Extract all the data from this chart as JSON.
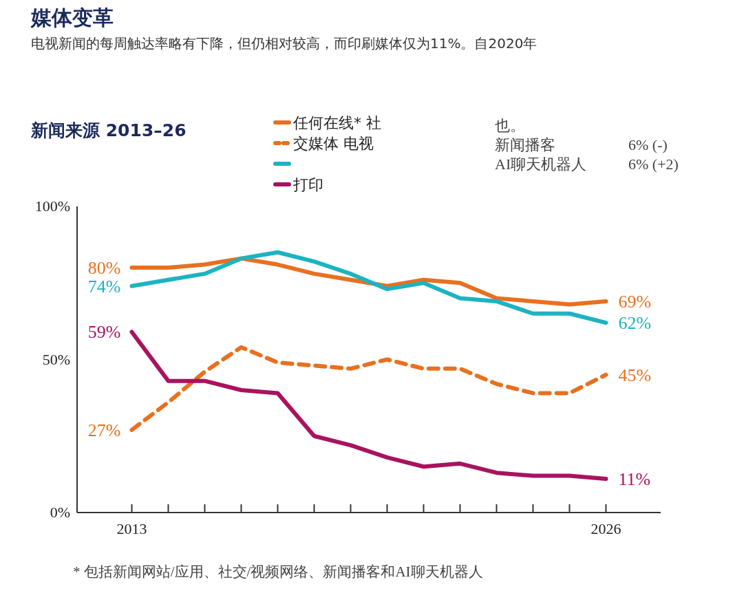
{
  "chart_data": {
    "type": "line",
    "title": "媒体变革",
    "subtitle": "电视新闻的每周触达率略有下降，但仍相对较高，而印刷媒体仅为11%。自2020年",
    "x": [
      2013,
      2014,
      2015,
      2016,
      2017,
      2018,
      2019,
      2020,
      2021,
      2022,
      2023,
      2024,
      2025,
      2026
    ],
    "xlim": [
      2011.5,
      2027.5
    ],
    "xticks": [
      {
        "value": 2013,
        "label": "2013"
      },
      {
        "value": 2014,
        "label": null
      },
      {
        "value": 2015,
        "label": null
      },
      {
        "value": 2016,
        "label": null
      },
      {
        "value": 2017,
        "label": null
      },
      {
        "value": 2018,
        "label": null
      },
      {
        "value": 2019,
        "label": null
      },
      {
        "value": 2020,
        "label": null
      },
      {
        "value": 2021,
        "label": null
      },
      {
        "value": 2022,
        "label": null
      },
      {
        "value": 2023,
        "label": null
      },
      {
        "value": 2024,
        "label": null
      },
      {
        "value": 2025,
        "label": null
      },
      {
        "value": 2026,
        "label": "2026"
      }
    ],
    "ylim": [
      0,
      100
    ],
    "yticks": [
      {
        "value": 0,
        "label": "0%"
      },
      {
        "value": 50,
        "label": "50%"
      },
      {
        "value": 100,
        "label": "100%"
      }
    ],
    "grid": false,
    "legend": "top",
    "marker": "none",
    "series": [
      {
        "name": "任何在线* 社",
        "color": "#e8701f",
        "line_style": "solid",
        "values": [
          80,
          80,
          81,
          83,
          81,
          78,
          76,
          74,
          76,
          75,
          70,
          69,
          68,
          69
        ],
        "value_labels": [
          "80%",
          null,
          null,
          null,
          null,
          null,
          null,
          null,
          null,
          null,
          null,
          null,
          null,
          "69%"
        ]
      },
      {
        "name": "交媒体 电视",
        "color": "#e8701f",
        "line_style": "dashed",
        "values": [
          27,
          36,
          46,
          54,
          49,
          48,
          47,
          50,
          47,
          47,
          42,
          39,
          39,
          45
        ],
        "value_labels": [
          "27%",
          null,
          null,
          null,
          null,
          null,
          null,
          null,
          null,
          null,
          null,
          null,
          null,
          "45%"
        ]
      },
      {
        "color": "#1db3c1",
        "line_style": "solid",
        "values": [
          74,
          76,
          78,
          83,
          85,
          82,
          78,
          73,
          75,
          70,
          69,
          65,
          65,
          62
        ],
        "value_labels": [
          "74%",
          null,
          null,
          null,
          null,
          null,
          null,
          null,
          null,
          null,
          null,
          null,
          null,
          "62%"
        ]
      },
      {
        "name": "打印",
        "color": "#a8135f",
        "line_style": "solid",
        "values": [
          59,
          43,
          43,
          40,
          39,
          25,
          22,
          18,
          15,
          16,
          13,
          12,
          12,
          11
        ],
        "value_labels": [
          "59%",
          null,
          null,
          null,
          null,
          null,
          null,
          null,
          null,
          null,
          null,
          null,
          null,
          "11%"
        ]
      }
    ],
    "annotations": [
      "新闻来源 2013–26",
      "也。",
      "新闻播客",
      "6% (-)",
      "AI聊天机器人",
      "6% (+2)",
      "* 包括新闻网站/应用、社交/视频网络、新闻播客和AI聊天机器人"
    ]
  }
}
